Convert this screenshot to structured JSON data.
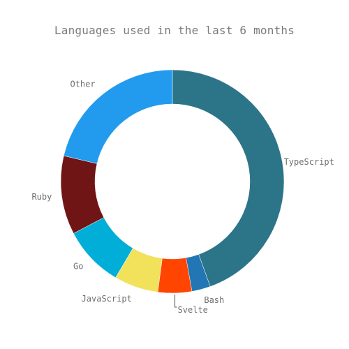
{
  "chart_data": {
    "type": "pie",
    "title": "Languages used in the last 6 months",
    "hole": true,
    "series": [
      {
        "name": "",
        "slices": [
          {
            "label": "TypeScript",
            "value": 44.5,
            "color": "#2c7589"
          },
          {
            "label": "Bash",
            "value": 2.7,
            "color": "#2276b4"
          },
          {
            "label": "Svelte",
            "value": 4.9,
            "color": "#ff4500"
          },
          {
            "label": "JavaScript",
            "value": 6.4,
            "color": "#f2e15a"
          },
          {
            "label": "Go",
            "value": 8.8,
            "color": "#00aed8"
          },
          {
            "label": "Ruby",
            "value": 11.4,
            "color": "#701516"
          },
          {
            "label": "Other",
            "value": 21.3,
            "color": "#229bef"
          }
        ]
      }
    ]
  }
}
